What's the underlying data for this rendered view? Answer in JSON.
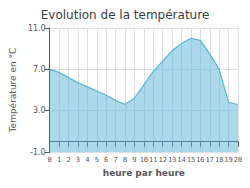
{
  "chart_data": {
    "type": "area",
    "title": "Evolution de la température",
    "xlabel": "heure par heure",
    "ylabel": "Température en °C",
    "x": [
      0,
      1,
      2,
      3,
      4,
      5,
      6,
      7,
      8,
      9,
      10,
      11,
      12,
      13,
      14,
      15,
      16,
      17,
      18,
      19,
      20
    ],
    "values": [
      7.0,
      6.7,
      6.2,
      5.7,
      5.3,
      4.9,
      4.5,
      4.0,
      3.6,
      4.2,
      5.5,
      6.8,
      7.8,
      8.8,
      9.5,
      10.0,
      9.8,
      8.5,
      7.0,
      3.8,
      3.6
    ],
    "color": "#5ab4d6",
    "xlim": [
      0,
      20
    ],
    "xticks": [
      0,
      1,
      2,
      3,
      4,
      5,
      6,
      7,
      8,
      9,
      10,
      11,
      12,
      13,
      14,
      15,
      16,
      17,
      18,
      19,
      20
    ],
    "ylim": [
      -1.0,
      11.0
    ],
    "yticks": [
      {
        "value": -1.0,
        "label": "-1.0"
      },
      {
        "value": 3.0,
        "label": "3.0"
      },
      {
        "value": 7.0,
        "label": "7.0"
      },
      {
        "value": 11.0,
        "label": "11.0"
      }
    ],
    "grid": true
  }
}
